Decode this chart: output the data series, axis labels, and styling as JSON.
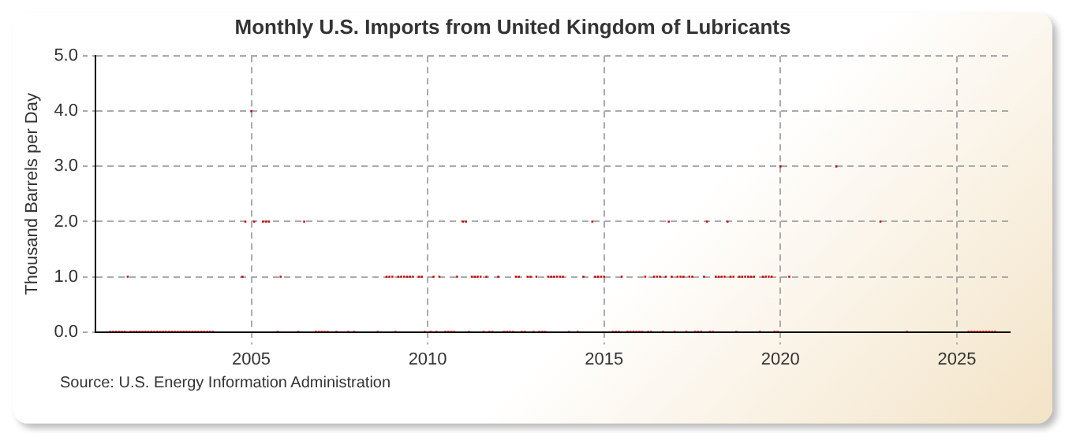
{
  "chart_data": {
    "type": "scatter",
    "title": "Monthly U.S. Imports from United Kingdom of Lubricants",
    "ylabel": "Thousand Barrels per Day",
    "annotations": [
      "Source: U.S. Energy Information Administration"
    ],
    "marker": "square",
    "grid": true,
    "legend": false,
    "xlim": [
      "2000-08",
      "2026-07"
    ],
    "xticks": [
      "2005",
      "2010",
      "2015",
      "2020",
      "2025"
    ],
    "ylim": [
      0,
      5
    ],
    "yticks": [
      {
        "value": 0,
        "label": "0.0"
      },
      {
        "value": 1,
        "label": "1.0"
      },
      {
        "value": 2,
        "label": "2.0"
      },
      {
        "value": 3,
        "label": "3.0"
      },
      {
        "value": 4,
        "label": "4.0"
      },
      {
        "value": 5,
        "label": "5.0"
      }
    ],
    "series": [
      {
        "color": "#cc0000",
        "x": [
          "2001-01",
          "2001-02",
          "2001-03",
          "2001-04",
          "2001-05",
          "2001-06",
          "2001-07",
          "2001-08",
          "2001-09",
          "2001-10",
          "2001-11",
          "2001-12",
          "2002-01",
          "2002-02",
          "2002-03",
          "2002-04",
          "2002-05",
          "2002-06",
          "2002-07",
          "2002-08",
          "2002-09",
          "2002-10",
          "2002-11",
          "2002-12",
          "2003-01",
          "2003-02",
          "2003-03",
          "2003-04",
          "2003-05",
          "2003-06",
          "2003-07",
          "2003-08",
          "2003-09",
          "2003-10",
          "2003-11",
          "2003-12",
          "2004-10",
          "2004-11",
          "2005-01",
          "2005-02",
          "2005-05",
          "2005-06",
          "2005-07",
          "2005-10",
          "2005-11",
          "2006-05",
          "2006-07",
          "2006-11",
          "2006-12",
          "2007-01",
          "2007-02",
          "2007-03",
          "2007-06",
          "2007-10",
          "2007-12",
          "2008-08",
          "2008-11",
          "2008-12",
          "2009-01",
          "2009-02",
          "2009-03",
          "2009-04",
          "2009-05",
          "2009-06",
          "2009-07",
          "2009-08",
          "2009-10",
          "2009-11",
          "2009-12",
          "2010-02",
          "2010-03",
          "2010-04",
          "2010-05",
          "2010-07",
          "2010-08",
          "2010-09",
          "2010-10",
          "2010-11",
          "2011-01",
          "2011-02",
          "2011-03",
          "2011-04",
          "2011-05",
          "2011-06",
          "2011-07",
          "2011-08",
          "2011-09",
          "2011-10",
          "2011-11",
          "2012-01",
          "2012-03",
          "2012-04",
          "2012-05",
          "2012-06",
          "2012-07",
          "2012-08",
          "2012-09",
          "2012-10",
          "2012-11",
          "2012-12",
          "2013-01",
          "2013-02",
          "2013-03",
          "2013-04",
          "2013-05",
          "2013-06",
          "2013-07",
          "2013-08",
          "2013-09",
          "2013-10",
          "2013-11",
          "2014-01",
          "2014-04",
          "2014-06",
          "2014-09",
          "2014-10",
          "2014-11",
          "2014-12",
          "2015-01",
          "2015-04",
          "2015-05",
          "2015-06",
          "2015-07",
          "2015-09",
          "2015-10",
          "2015-11",
          "2015-12",
          "2016-01",
          "2016-02",
          "2016-03",
          "2016-04",
          "2016-05",
          "2016-06",
          "2016-07",
          "2016-08",
          "2016-09",
          "2016-10",
          "2016-11",
          "2016-12",
          "2017-01",
          "2017-02",
          "2017-03",
          "2017-04",
          "2017-05",
          "2017-06",
          "2017-07",
          "2017-08",
          "2017-09",
          "2017-10",
          "2017-11",
          "2017-12",
          "2018-01",
          "2018-02",
          "2018-03",
          "2018-04",
          "2018-05",
          "2018-06",
          "2018-07",
          "2018-08",
          "2018-09",
          "2018-10",
          "2018-11",
          "2018-12",
          "2019-01",
          "2019-02",
          "2019-03",
          "2019-04",
          "2019-06",
          "2019-07",
          "2019-08",
          "2019-09",
          "2019-10",
          "2019-11",
          "2019-12",
          "2020-01",
          "2020-04",
          "2021-08",
          "2022-11",
          "2023-08",
          "2025-05",
          "2025-06",
          "2025-07",
          "2025-08",
          "2025-09",
          "2025-10",
          "2025-11",
          "2025-12",
          "2026-01",
          "2026-02"
        ],
        "values": [
          0,
          0,
          0,
          0,
          0,
          0,
          1,
          0,
          0,
          0,
          0,
          0,
          0,
          0,
          0,
          0,
          0,
          0,
          0,
          0,
          0,
          0,
          0,
          0,
          0,
          0,
          0,
          0,
          0,
          0,
          0,
          0,
          0,
          0,
          0,
          0,
          1,
          2,
          4,
          2,
          2,
          2,
          2,
          0,
          1,
          0,
          2,
          0,
          0,
          0,
          0,
          0,
          0,
          0,
          0,
          0,
          1,
          1,
          1,
          0,
          1,
          1,
          1,
          1,
          1,
          1,
          1,
          1,
          0,
          0,
          1,
          0,
          1,
          0,
          0,
          0,
          0,
          1,
          2,
          2,
          0,
          1,
          1,
          1,
          1,
          0,
          1,
          0,
          0,
          1,
          0,
          0,
          0,
          0,
          1,
          1,
          0,
          0,
          1,
          1,
          0,
          1,
          0,
          0,
          0,
          1,
          1,
          1,
          1,
          1,
          1,
          0,
          0,
          1,
          2,
          1,
          1,
          1,
          1,
          0,
          0,
          0,
          1,
          0,
          0,
          0,
          0,
          0,
          0,
          1,
          0,
          0,
          1,
          1,
          1,
          0,
          1,
          2,
          1,
          0,
          1,
          1,
          1,
          0,
          1,
          1,
          0,
          0,
          0,
          1,
          2,
          0,
          0,
          1,
          1,
          1,
          1,
          2,
          1,
          1,
          0,
          1,
          1,
          1,
          1,
          1,
          1,
          0,
          1,
          1,
          1,
          1,
          0,
          0,
          3,
          1,
          3,
          2,
          0,
          0,
          0,
          0,
          0,
          0,
          0,
          0,
          0,
          0,
          0
        ]
      }
    ]
  }
}
